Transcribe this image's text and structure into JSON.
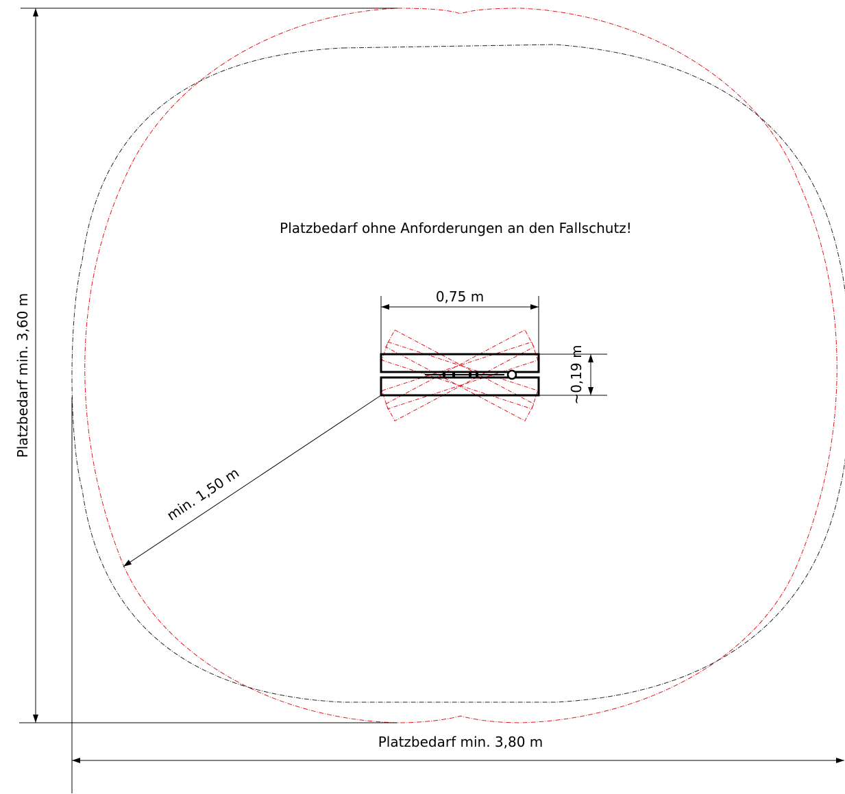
{
  "drawing": {
    "note": "Platzbedarf ohne Anforderungen an den Fallschutz!",
    "width_label": "0,75 m",
    "thickness_label": "~0,19 m",
    "radius_label": "min. 1,50 m",
    "height_label": "Platzbedarf min. 3,60 m",
    "total_width_label": "Platzbedarf min. 3,80 m",
    "colors": {
      "outline_red": "#e0141c",
      "outline_black": "#222222",
      "lines": "#000000"
    }
  }
}
